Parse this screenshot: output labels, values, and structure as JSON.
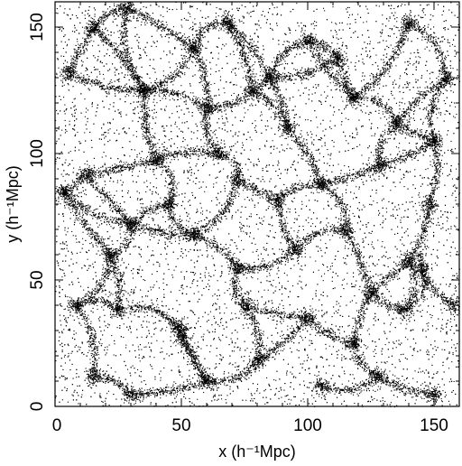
{
  "chart_data": {
    "type": "scatter",
    "title": "",
    "xlabel": "x (h⁻¹Mpc)",
    "ylabel": "y (h⁻¹Mpc)",
    "xlim": [
      0,
      160
    ],
    "ylim": [
      0,
      160
    ],
    "xticks": [
      0,
      50,
      100,
      150
    ],
    "yticks": [
      0,
      50,
      100,
      150
    ],
    "xtick_labels": [
      "0",
      "50",
      "100",
      "150"
    ],
    "ytick_labels": [
      "0",
      "50",
      "100",
      "150"
    ],
    "grid": false,
    "legend": null,
    "point_color": "#000000",
    "description_note": "dense point distribution forming a cosmic-web pattern of filaments, nodes and voids",
    "clusters": [
      {
        "x": 15,
        "y": 150
      },
      {
        "x": 28,
        "y": 158
      },
      {
        "x": 55,
        "y": 142
      },
      {
        "x": 68,
        "y": 152
      },
      {
        "x": 100,
        "y": 145
      },
      {
        "x": 112,
        "y": 138
      },
      {
        "x": 140,
        "y": 152
      },
      {
        "x": 155,
        "y": 130
      },
      {
        "x": 5,
        "y": 132
      },
      {
        "x": 35,
        "y": 125
      },
      {
        "x": 60,
        "y": 118
      },
      {
        "x": 78,
        "y": 125
      },
      {
        "x": 92,
        "y": 110
      },
      {
        "x": 118,
        "y": 122
      },
      {
        "x": 135,
        "y": 112
      },
      {
        "x": 150,
        "y": 105
      },
      {
        "x": 12,
        "y": 92
      },
      {
        "x": 40,
        "y": 98
      },
      {
        "x": 72,
        "y": 90
      },
      {
        "x": 88,
        "y": 82
      },
      {
        "x": 105,
        "y": 88
      },
      {
        "x": 128,
        "y": 95
      },
      {
        "x": 148,
        "y": 80
      },
      {
        "x": 3,
        "y": 85
      },
      {
        "x": 22,
        "y": 60
      },
      {
        "x": 30,
        "y": 72
      },
      {
        "x": 55,
        "y": 68
      },
      {
        "x": 72,
        "y": 55
      },
      {
        "x": 95,
        "y": 62
      },
      {
        "x": 115,
        "y": 70
      },
      {
        "x": 140,
        "y": 58
      },
      {
        "x": 145,
        "y": 55
      },
      {
        "x": 8,
        "y": 40
      },
      {
        "x": 25,
        "y": 38
      },
      {
        "x": 48,
        "y": 32
      },
      {
        "x": 50,
        "y": 28
      },
      {
        "x": 75,
        "y": 40
      },
      {
        "x": 100,
        "y": 35
      },
      {
        "x": 118,
        "y": 25
      },
      {
        "x": 138,
        "y": 38
      },
      {
        "x": 158,
        "y": 40
      },
      {
        "x": 15,
        "y": 12
      },
      {
        "x": 30,
        "y": 5
      },
      {
        "x": 60,
        "y": 10
      },
      {
        "x": 80,
        "y": 18
      },
      {
        "x": 105,
        "y": 8
      },
      {
        "x": 128,
        "y": 12
      },
      {
        "x": 150,
        "y": 5
      },
      {
        "x": 65,
        "y": 100
      },
      {
        "x": 125,
        "y": 45
      },
      {
        "x": 85,
        "y": 130
      },
      {
        "x": 45,
        "y": 80
      }
    ]
  }
}
